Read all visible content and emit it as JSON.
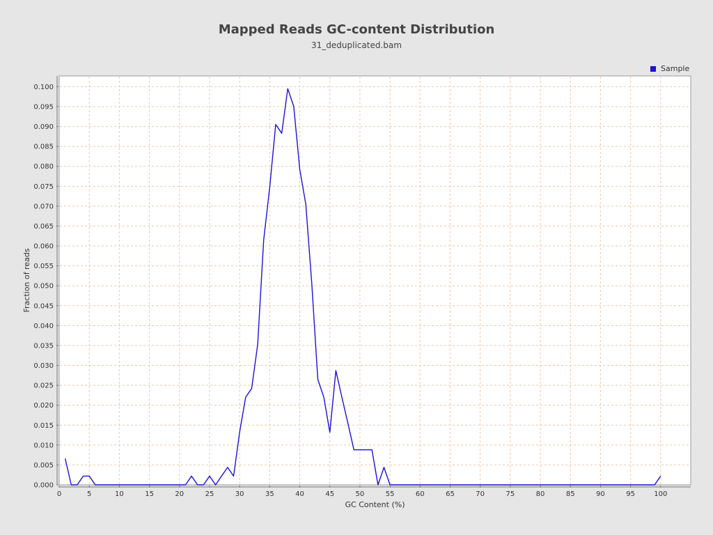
{
  "chart_data": {
    "type": "line",
    "title": "Mapped Reads GC-content Distribution",
    "subtitle": "31_deduplicated.bam",
    "xlabel": "GC Content (%)",
    "ylabel": "Fraction of reads",
    "xlim": [
      0,
      105
    ],
    "ylim": [
      0,
      0.1027
    ],
    "x_ticks": [
      "0",
      "5",
      "10",
      "15",
      "20",
      "25",
      "30",
      "35",
      "40",
      "45",
      "50",
      "55",
      "60",
      "65",
      "70",
      "75",
      "80",
      "85",
      "90",
      "95",
      "100"
    ],
    "y_ticks": [
      "0.000",
      "0.005",
      "0.010",
      "0.015",
      "0.020",
      "0.025",
      "0.030",
      "0.035",
      "0.040",
      "0.045",
      "0.050",
      "0.055",
      "0.060",
      "0.065",
      "0.070",
      "0.075",
      "0.080",
      "0.085",
      "0.090",
      "0.095",
      "0.100"
    ],
    "grid": true,
    "legend_position": "top-right",
    "series": [
      {
        "name": "Sample",
        "color": "#1a12d6",
        "x": [
          1,
          2,
          3,
          4,
          5,
          6,
          7,
          8,
          9,
          10,
          11,
          12,
          13,
          14,
          15,
          16,
          17,
          18,
          19,
          20,
          21,
          22,
          23,
          24,
          25,
          26,
          27,
          28,
          29,
          30,
          31,
          32,
          33,
          34,
          35,
          36,
          37,
          38,
          39,
          40,
          41,
          42,
          43,
          44,
          45,
          46,
          47,
          48,
          49,
          50,
          51,
          52,
          53,
          54,
          55,
          56,
          57,
          58,
          59,
          60,
          61,
          62,
          63,
          64,
          65,
          66,
          67,
          68,
          69,
          70,
          71,
          72,
          73,
          74,
          75,
          76,
          77,
          78,
          79,
          80,
          81,
          82,
          83,
          84,
          85,
          86,
          87,
          88,
          89,
          90,
          91,
          92,
          93,
          94,
          95,
          96,
          97,
          98,
          99,
          100
        ],
        "values": [
          0.0066,
          0.0,
          0.0,
          0.0022,
          0.0022,
          0.0,
          0.0,
          0.0,
          0.0,
          0.0,
          0.0,
          0.0,
          0.0,
          0.0,
          0.0,
          0.0,
          0.0,
          0.0,
          0.0,
          0.0,
          0.0,
          0.0022,
          0.0,
          0.0,
          0.0022,
          0.0,
          0.0022,
          0.0044,
          0.0022,
          0.0132,
          0.022,
          0.0242,
          0.0352,
          0.0615,
          0.0747,
          0.0905,
          0.0883,
          0.0995,
          0.095,
          0.0792,
          0.0705,
          0.0505,
          0.0265,
          0.022,
          0.0132,
          0.0287,
          0.022,
          0.0155,
          0.0088,
          0.0088,
          0.0088,
          0.0088,
          0.0,
          0.0044,
          0.0,
          0.0,
          0.0,
          0.0,
          0.0,
          0.0,
          0.0,
          0.0,
          0.0,
          0.0,
          0.0,
          0.0,
          0.0,
          0.0,
          0.0,
          0.0,
          0.0,
          0.0,
          0.0,
          0.0,
          0.0,
          0.0,
          0.0,
          0.0,
          0.0,
          0.0,
          0.0,
          0.0,
          0.0,
          0.0,
          0.0,
          0.0,
          0.0,
          0.0,
          0.0,
          0.0,
          0.0,
          0.0,
          0.0,
          0.0,
          0.0,
          0.0,
          0.0,
          0.0,
          0.0,
          0.0022
        ]
      }
    ]
  }
}
